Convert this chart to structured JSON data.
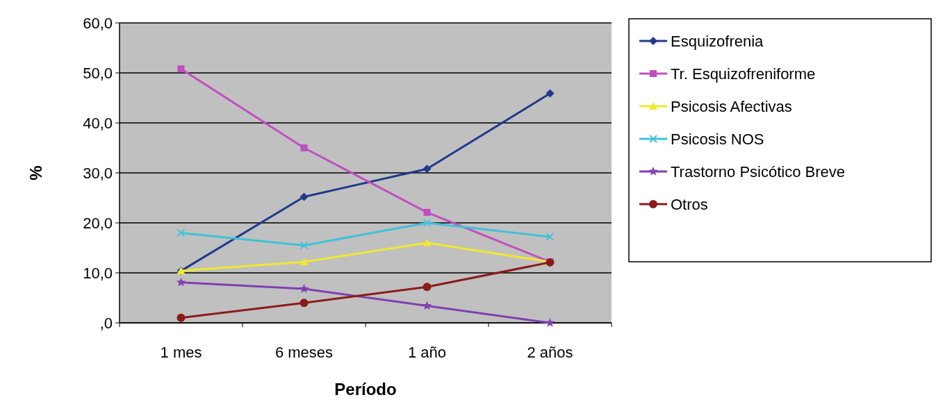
{
  "chart_data": {
    "type": "line",
    "xlabel": "Período",
    "ylabel": "%",
    "categories": [
      "1 mes",
      "6 meses",
      "1 año",
      "2 años"
    ],
    "ylim": [
      0,
      60
    ],
    "yticks": [
      {
        "value": 0,
        "label": ",0"
      },
      {
        "value": 10,
        "label": "10,0"
      },
      {
        "value": 20,
        "label": "20,0"
      },
      {
        "value": 30,
        "label": "30,0"
      },
      {
        "value": 40,
        "label": "40,0"
      },
      {
        "value": 50,
        "label": "50,0"
      },
      {
        "value": 60,
        "label": "60,0"
      }
    ],
    "grid": "y",
    "legend": "right",
    "series": [
      {
        "name": "Esquizofrenia",
        "color": "#1f3a8a",
        "marker": "diamond",
        "values": [
          10.4,
          25.2,
          30.8,
          45.9
        ]
      },
      {
        "name": "Tr. Esquizofreniforme",
        "color": "#c04fc0",
        "marker": "square",
        "values": [
          50.8,
          35.0,
          22.1,
          12.2
        ]
      },
      {
        "name": "Psicosis Afectivas",
        "color": "#f0e830",
        "marker": "triangle",
        "values": [
          10.4,
          12.2,
          16.0,
          12.2
        ]
      },
      {
        "name": "Psicosis NOS",
        "color": "#40c0d8",
        "marker": "cross",
        "values": [
          18.0,
          15.5,
          20.0,
          17.2
        ]
      },
      {
        "name": "Trastorno Psicótico Breve",
        "color": "#8040b0",
        "marker": "star",
        "values": [
          8.1,
          6.8,
          3.4,
          0
        ]
      },
      {
        "name": "Otros",
        "color": "#8b1a1a",
        "marker": "circle",
        "values": [
          1.0,
          4.0,
          7.2,
          12.1
        ]
      }
    ]
  }
}
